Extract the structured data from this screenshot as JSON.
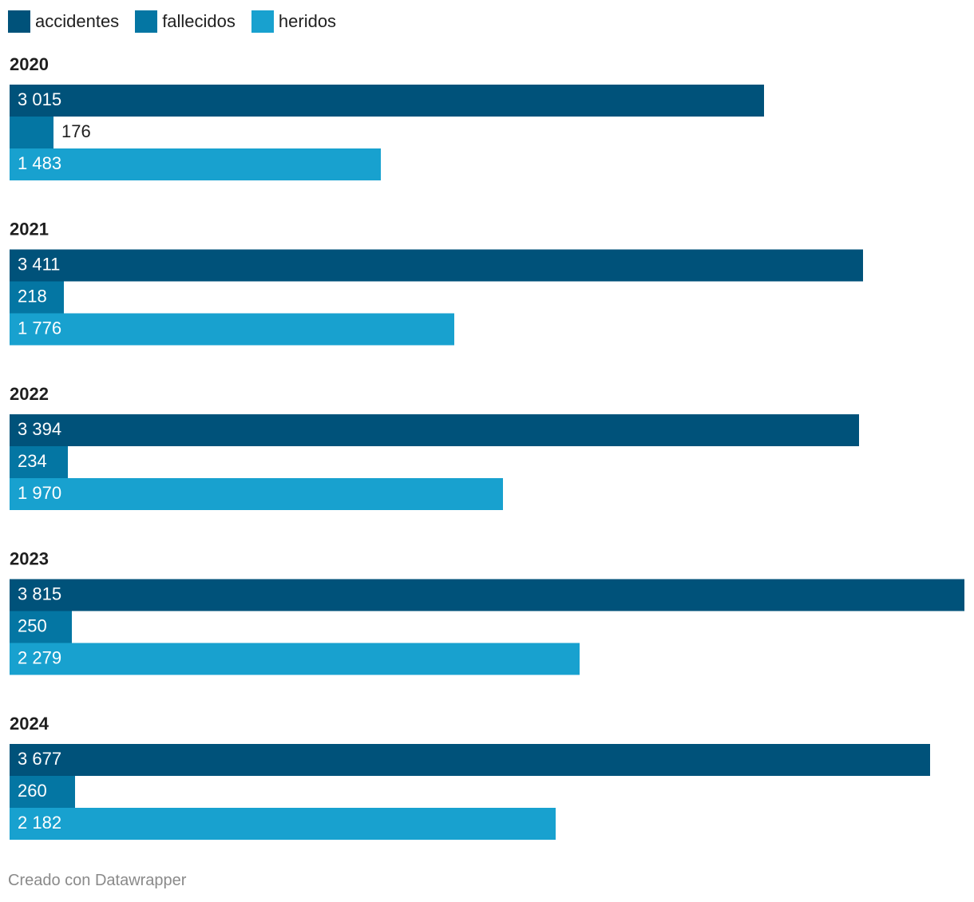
{
  "legend": [
    {
      "label": "accidentes",
      "color": "#00527a"
    },
    {
      "label": "fallecidos",
      "color": "#0476a3"
    },
    {
      "label": "heridos",
      "color": "#18a1cf"
    }
  ],
  "chart_data": {
    "type": "bar",
    "orientation": "horizontal",
    "title": "",
    "xlabel": "",
    "ylabel": "",
    "grid": false,
    "legend_position": "top-left",
    "xlim": [
      0,
      3815
    ],
    "categories": [
      "2020",
      "2021",
      "2022",
      "2023",
      "2024"
    ],
    "series": [
      {
        "name": "accidentes",
        "color": "#00527a",
        "values": [
          3015,
          3411,
          3394,
          3815,
          3677
        ],
        "labels": [
          "3 015",
          "3 411",
          "3 394",
          "3 815",
          "3 677"
        ]
      },
      {
        "name": "fallecidos",
        "color": "#0476a3",
        "values": [
          176,
          218,
          234,
          250,
          260
        ],
        "labels": [
          "176",
          "218",
          "234",
          "250",
          "260"
        ]
      },
      {
        "name": "heridos",
        "color": "#18a1cf",
        "values": [
          1483,
          1776,
          1970,
          2279,
          2182
        ],
        "labels": [
          "1 483",
          "1 776",
          "1 970",
          "2 279",
          "2 182"
        ]
      }
    ]
  },
  "footer": {
    "credit": "Creado con Datawrapper"
  }
}
